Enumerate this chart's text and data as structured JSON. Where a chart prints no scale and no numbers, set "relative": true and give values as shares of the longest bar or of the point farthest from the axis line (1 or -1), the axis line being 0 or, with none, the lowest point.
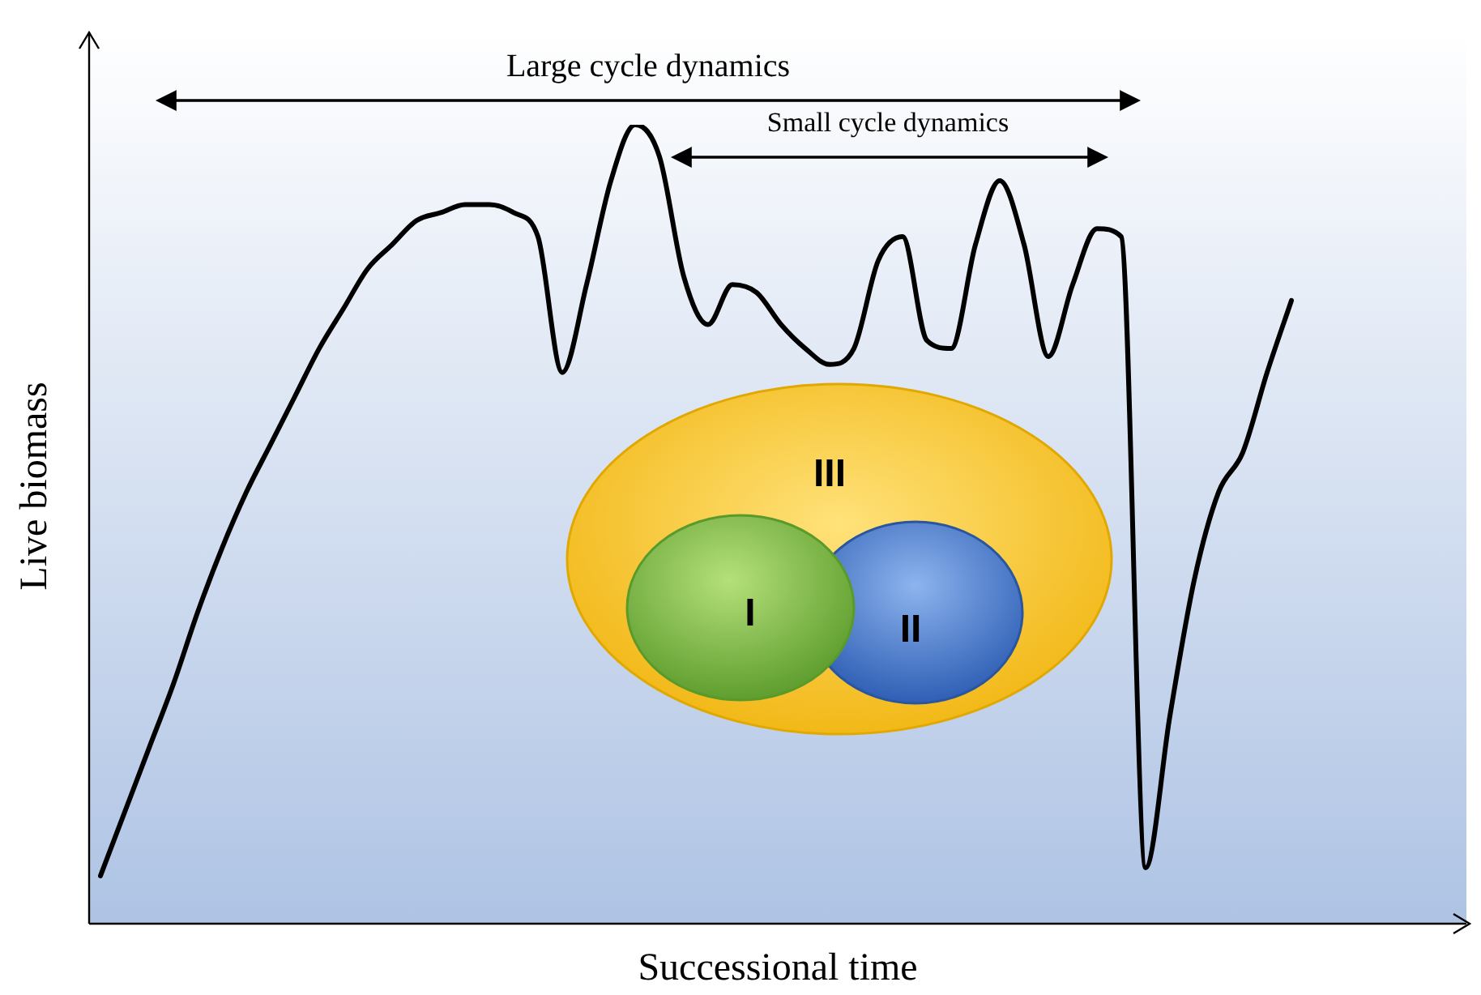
{
  "chart_data": {
    "type": "line",
    "xlabel": "Successional time",
    "ylabel": "Live biomass",
    "relative": true,
    "tick_labels": false,
    "annotations": [
      "Large cycle dynamics",
      "Small cycle dynamics",
      "III",
      "I",
      "II"
    ],
    "categories": [
      null,
      null,
      null,
      null,
      null,
      null,
      null,
      null,
      null,
      null,
      null,
      null,
      null,
      null,
      null,
      null,
      null,
      null,
      null,
      null,
      null,
      null,
      null,
      null,
      null,
      null,
      null,
      null,
      null,
      null,
      null,
      null,
      null,
      null,
      null,
      null,
      null,
      null,
      null,
      null,
      null,
      null,
      null,
      null,
      null,
      null,
      null,
      null,
      null,
      null
    ],
    "color": "#000000",
    "values": [
      0.06,
      0.14,
      0.22,
      0.3,
      0.39,
      0.47,
      0.54,
      0.6,
      0.66,
      0.72,
      0.77,
      0.82,
      0.85,
      0.88,
      0.89,
      0.9,
      0.9,
      0.89,
      0.86,
      0.69,
      0.8,
      0.93,
      1,
      0.96,
      0.81,
      0.75,
      0.8,
      0.79,
      0.75,
      0.72,
      0.7,
      0.72,
      0.83,
      0.86,
      0.73,
      0.72,
      0.85,
      0.93,
      0.85,
      0.71,
      0.8,
      0.87,
      0.86,
      0.07,
      0.26,
      0.43,
      0.54,
      0.59,
      0.69,
      0.78
    ]
  }
}
